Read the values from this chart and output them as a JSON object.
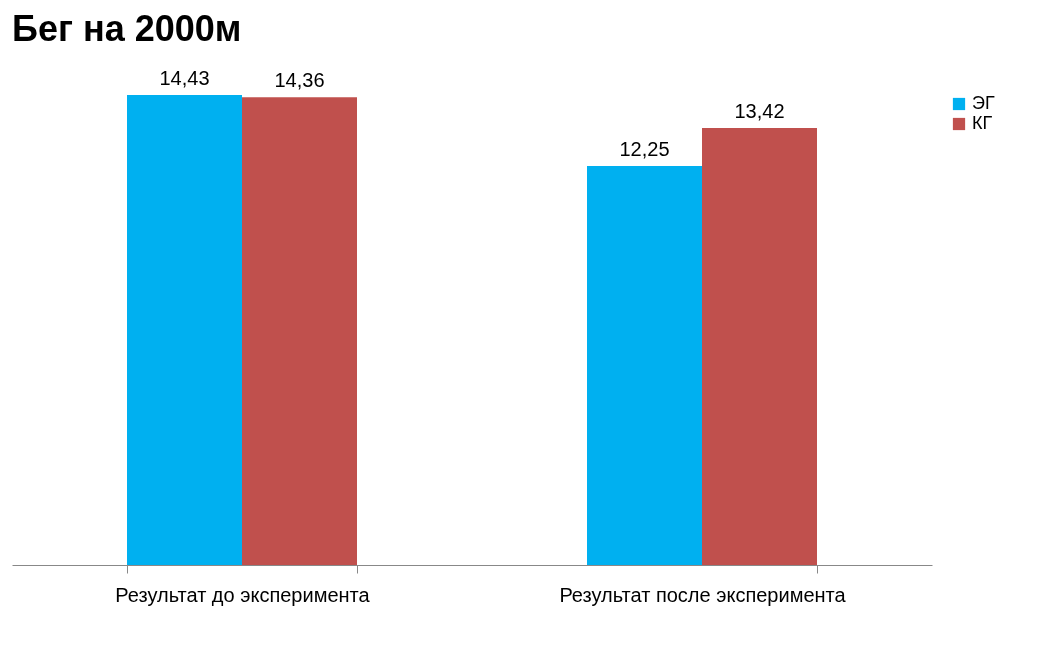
{
  "chart_data": {
    "type": "bar",
    "title": "Бег на 2000м",
    "categories": [
      "Результат до эксперимента",
      "Результат после эксперимента"
    ],
    "series": [
      {
        "name": "ЭГ",
        "color": "#00b0f0",
        "values": [
          14.43,
          12.25
        ],
        "value_labels": [
          "14,43",
          "12,25"
        ]
      },
      {
        "name": "КГ",
        "color": "#c0504d",
        "values": [
          14.36,
          13.42
        ],
        "value_labels": [
          "14,36",
          "13,42"
        ]
      }
    ],
    "legend": "right",
    "grid": false
  }
}
